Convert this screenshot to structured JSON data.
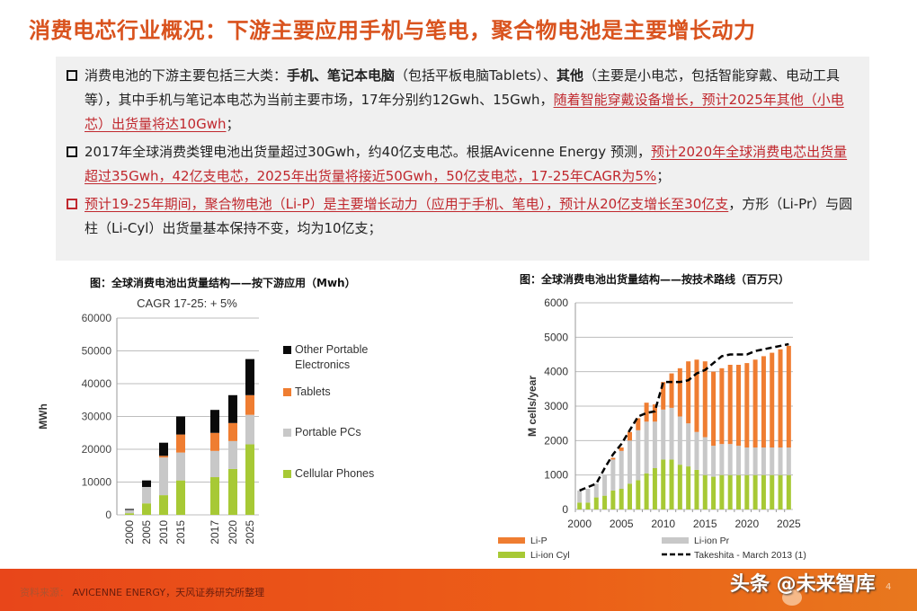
{
  "title": "消费电芯行业概况：下游主要应用手机与笔电，聚合物电池是主要增长动力",
  "bullets": [
    {
      "marker": "square",
      "marker_color": "#111111",
      "segments": [
        {
          "text": "消费电池的下游主要包括三大类：",
          "style": "normal"
        },
        {
          "text": "手机、笔记本电脑",
          "style": "bold"
        },
        {
          "text": "（包括平板电脑Tablets）、",
          "style": "normal"
        },
        {
          "text": "其他",
          "style": "bold"
        },
        {
          "text": "（主要是小电芯，包括智能穿戴、电动工具等），其中手机与笔记本电芯为当前主要市场，17年分别约12Gwh、15Gwh，",
          "style": "normal"
        },
        {
          "text": "随着智能穿戴设备增长，预计2025年其他（小电芯）出货量将达10Gwh",
          "style": "highlight"
        },
        {
          "text": "；",
          "style": "normal"
        }
      ]
    },
    {
      "marker": "square",
      "marker_color": "#111111",
      "segments": [
        {
          "text": "2017年全球消费类锂电池出货量超过30Gwh，约40亿支电芯。根据Avicenne Energy 预测，",
          "style": "normal"
        },
        {
          "text": "预计2020年全球消费电芯出货量超过35Gwh，42亿支电芯，2025年出货量将接近50Gwh，50亿支电芯，17-25年CAGR为5%",
          "style": "highlight"
        },
        {
          "text": "；",
          "style": "normal"
        }
      ]
    },
    {
      "marker": "square",
      "marker_color": "#c0272d",
      "segments": [
        {
          "text": "预计19-25年期间，聚合物电池（Li-P）是主要增长动力（应用于手机、笔电），预计从20亿支增长至30亿支",
          "style": "highlight"
        },
        {
          "text": "，方形（Li-Pr）与圆柱（Li-Cyl）出货量基本保持不变，均为10亿支；",
          "style": "normal"
        }
      ]
    }
  ],
  "colors": {
    "title": "#d9531e",
    "highlight": "#c0272d",
    "black_series": "#0a0a0a",
    "orange_series": "#ef7d31",
    "gray_series": "#c8c8c8",
    "green_series": "#a7c935"
  },
  "chart_data": [
    {
      "type": "bar",
      "stacked": true,
      "title": "图：全球消费电池出货量结构——按下游应用（Mwh）",
      "subtitle": "CAGR 17-25: + 5%",
      "xlabel": "",
      "ylabel": "MWh",
      "ylim": [
        0,
        60000
      ],
      "yticks": [
        0,
        10000,
        20000,
        30000,
        40000,
        50000,
        60000
      ],
      "grid": true,
      "legend_position": "right",
      "categories": [
        "2000",
        "2005",
        "2010",
        "2015",
        "2017",
        "2020",
        "2025"
      ],
      "series": [
        {
          "name": "Cellular Phones",
          "color": "#a7c935",
          "values": [
            500,
            3500,
            6000,
            10500,
            11500,
            14000,
            21500
          ]
        },
        {
          "name": "Portable PCs",
          "color": "#c8c8c8",
          "values": [
            1000,
            5000,
            11500,
            8500,
            8000,
            8500,
            9000
          ]
        },
        {
          "name": "Tablets",
          "color": "#ef7d31",
          "values": [
            0,
            0,
            500,
            5500,
            5500,
            5500,
            6000
          ]
        },
        {
          "name": "Other Portable Electronics",
          "color": "#0a0a0a",
          "values": [
            300,
            2000,
            4000,
            5500,
            7000,
            8500,
            11000
          ]
        }
      ],
      "legend": [
        "Other Portable Electronics",
        "Tablets",
        "Portable PCs",
        "Cellular Phones"
      ]
    },
    {
      "type": "bar",
      "stacked": true,
      "title": "图：全球消费电池出货量结构——按技术路线（百万只）",
      "xlabel": "",
      "ylabel": "M cells/year",
      "ylim": [
        0,
        6000
      ],
      "yticks": [
        0,
        1000,
        2000,
        3000,
        4000,
        5000,
        6000
      ],
      "xticks": [
        "2000",
        "2005",
        "2010",
        "2015",
        "2020",
        "2025"
      ],
      "grid": true,
      "legend_position": "bottom",
      "x": [
        2000,
        2001,
        2002,
        2003,
        2004,
        2005,
        2006,
        2007,
        2008,
        2009,
        2010,
        2011,
        2012,
        2013,
        2014,
        2015,
        2016,
        2017,
        2018,
        2019,
        2020,
        2021,
        2022,
        2023,
        2024,
        2025
      ],
      "series": [
        {
          "name": "Li-ion Cyl",
          "color": "#a7c935",
          "values": [
            200,
            200,
            350,
            400,
            550,
            600,
            750,
            850,
            1050,
            1200,
            1450,
            1450,
            1300,
            1250,
            1150,
            1000,
            950,
            1000,
            1000,
            1000,
            1000,
            1000,
            1000,
            1000,
            1000,
            1000
          ]
        },
        {
          "name": "Li-ion Pr",
          "color": "#c8c8c8",
          "values": [
            350,
            400,
            400,
            600,
            900,
            1100,
            1250,
            1450,
            1500,
            1350,
            1450,
            1500,
            1400,
            1250,
            1100,
            1100,
            900,
            900,
            900,
            850,
            800,
            800,
            800,
            800,
            800,
            800
          ]
        },
        {
          "name": "Li-P",
          "color": "#ef7d31",
          "values": [
            0,
            0,
            0,
            0,
            50,
            100,
            250,
            350,
            550,
            500,
            800,
            1000,
            1400,
            1800,
            2100,
            2200,
            2150,
            2200,
            2300,
            2350,
            2450,
            2550,
            2650,
            2750,
            2850,
            2950
          ]
        },
        {
          "name": "Takeshita - March 2013 (1)",
          "type": "line",
          "style": "dashed",
          "color": "#000000",
          "values": [
            550,
            650,
            750,
            1200,
            1600,
            1900,
            2300,
            2700,
            2800,
            2850,
            3700,
            3700,
            3700,
            3750,
            3950,
            4050,
            4250,
            4450,
            4500,
            4500,
            4500,
            4600,
            4650,
            4700,
            4750,
            4800
          ]
        }
      ],
      "legend": [
        "Li-P",
        "Li-ion Pr",
        "Li-ion Cyl",
        "Takeshita - March 2013 (1)"
      ]
    }
  ],
  "footer": {
    "source_label": "资料来源：",
    "source_text": "AVICENNE ENERGY，天风证券研究所整理",
    "watermark": "头条 @未来智库",
    "page_number": "4"
  }
}
